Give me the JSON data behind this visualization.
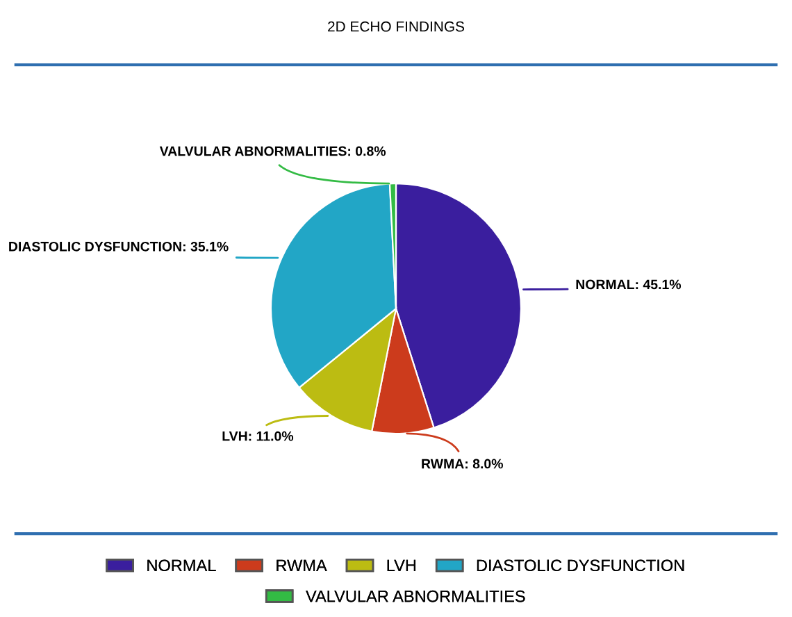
{
  "chart_data": {
    "type": "pie",
    "title": "2D ECHO FINDINGS",
    "categories": [
      "NORMAL",
      "RWMA",
      "LVH",
      "DIASTOLIC DYSFUNCTION",
      "VALVULAR ABNORMALITIES"
    ],
    "values": [
      45.1,
      8.0,
      11.0,
      35.1,
      0.8
    ],
    "colors": [
      "#3a1e9e",
      "#cc3b1c",
      "#bcbc12",
      "#22a6c6",
      "#33bb44"
    ],
    "value_labels": [
      "NORMAL: 45.1%",
      "RWMA: 8.0%",
      "LVH: 11.0%",
      "DIASTOLIC DYSFUNCTION: 35.1%",
      "VALVULAR ABNORMALITIES: 0.8%"
    ],
    "legend": "bottom"
  }
}
